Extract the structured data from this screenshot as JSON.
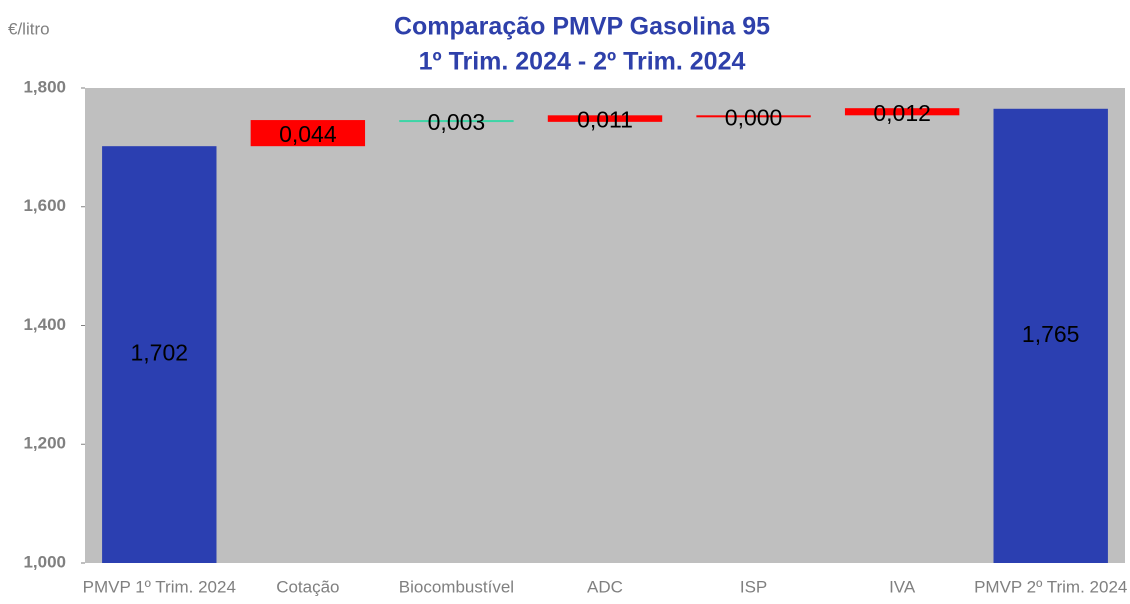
{
  "chart_data": {
    "type": "waterfall",
    "title": "Comparação PMVP Gasolina 95",
    "subtitle": "1º Trim. 2024 - 2º Trim. 2024",
    "y_label": "€/litro",
    "categories": [
      "PMVP 1º Trim. 2024",
      "Cotação",
      "Biocombustível",
      "ADC",
      "ISP",
      "IVA",
      "PMVP 2º Trim. 2024"
    ],
    "values": [
      1.702,
      0.044,
      -0.003,
      0.011,
      0.0,
      0.012,
      1.765
    ],
    "value_labels": [
      "1,702",
      "0,044",
      "0,003",
      "0,011",
      "0,000",
      "0,012",
      "1,765"
    ],
    "colors": [
      "#2b3fb1",
      "#ff0000",
      "#3dd5a6",
      "#ff0000",
      "#ff0000",
      "#ff0000",
      "#2b3fb1"
    ],
    "ylim": [
      1.0,
      1.8
    ],
    "yticks": [
      {
        "value": 1.0,
        "label": "1,000"
      },
      {
        "value": 1.2,
        "label": "1,200"
      },
      {
        "value": 1.4,
        "label": "1,400"
      },
      {
        "value": 1.6,
        "label": "1,600"
      },
      {
        "value": 1.8,
        "label": "1,800"
      }
    ]
  }
}
